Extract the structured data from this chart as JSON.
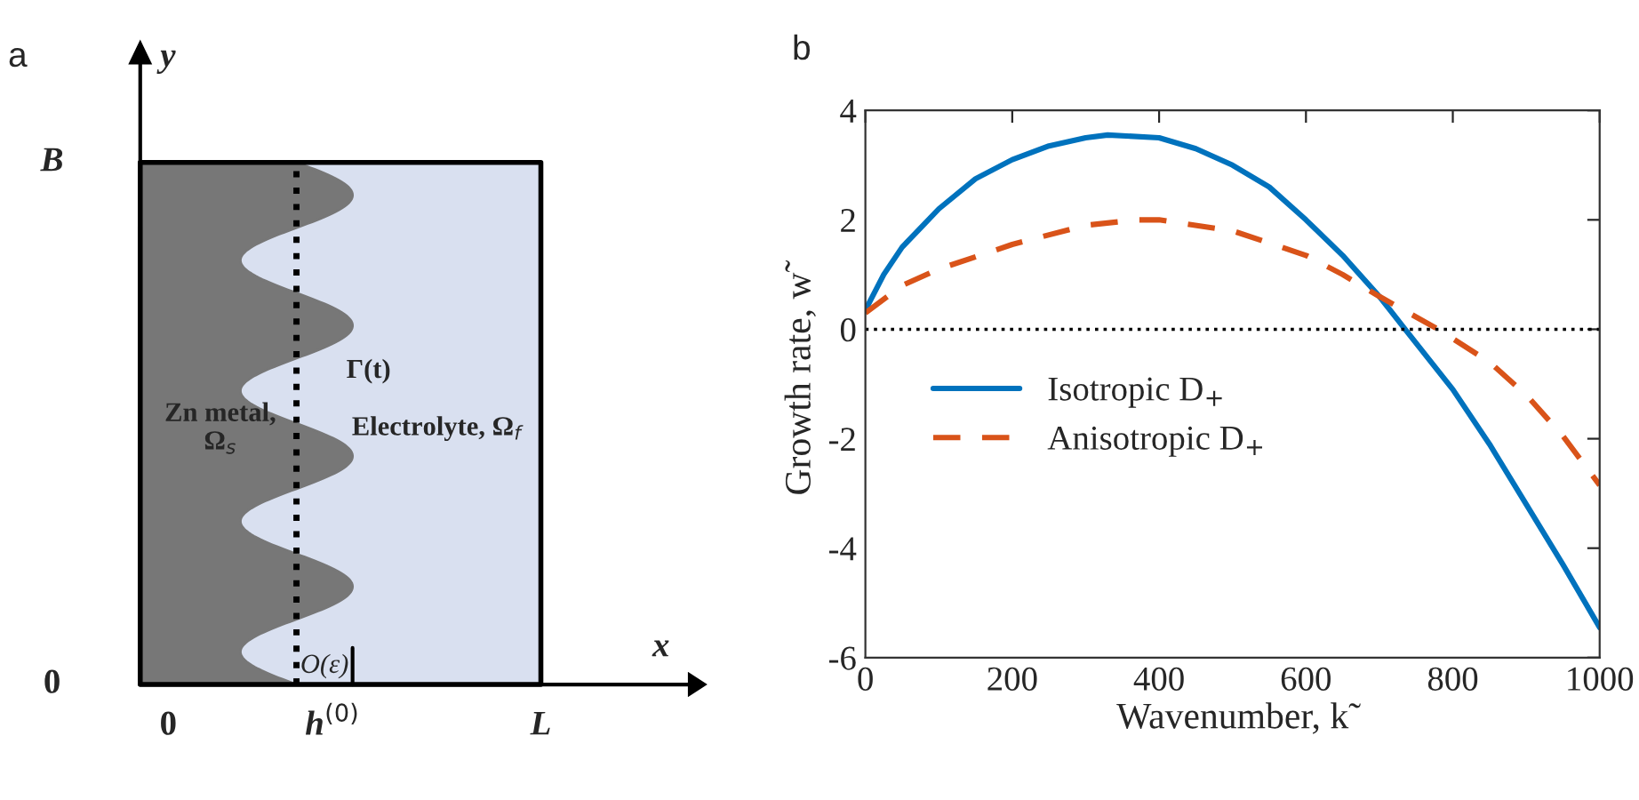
{
  "chart_data": [
    {
      "type": "other",
      "title": "a",
      "annotations": [
        "y",
        "B",
        "0",
        "x",
        "0",
        "h$^{(0)}$",
        "L",
        "Γ(t)",
        "Zn metal,\nΩ$_{s}$",
        "Electrolyte, Ω$_{f}$",
        "O(ε)"
      ]
    },
    {
      "type": "line",
      "title": "b",
      "xlabel": "Wavenumber, k̃",
      "ylabel": "Growth rate, w̃",
      "xlim": [
        0,
        1000
      ],
      "ylim": [
        -6,
        4
      ],
      "xticks": [
        0,
        200,
        400,
        600,
        800,
        1000
      ],
      "yticks": [
        -6,
        -4,
        -2,
        0,
        2,
        4
      ],
      "grid": false,
      "legend": "left",
      "ref_lines": [
        {
          "axis": "y",
          "value": 0,
          "color": "#000000",
          "line_style": "dotted"
        }
      ],
      "series": [
        {
          "name": "Isotropic D$_{+}$",
          "color": "#0072bd",
          "line_style": "solid",
          "x": [
            0,
            25,
            50,
            100,
            150,
            200,
            250,
            300,
            330,
            400,
            450,
            500,
            550,
            600,
            650,
            700,
            735,
            800,
            850,
            900,
            950,
            1000
          ],
          "values": [
            0.35,
            1.0,
            1.5,
            2.2,
            2.75,
            3.1,
            3.35,
            3.5,
            3.55,
            3.5,
            3.3,
            3.0,
            2.6,
            2.0,
            1.35,
            0.6,
            0,
            -1.1,
            -2.1,
            -3.2,
            -4.3,
            -5.45
          ]
        },
        {
          "name": "Anisotropic D$_{+}$",
          "color": "#d95319",
          "line_style": "dashed",
          "x": [
            0,
            50,
            100,
            200,
            300,
            370,
            400,
            500,
            600,
            650,
            700,
            780,
            850,
            900,
            950,
            1000
          ],
          "values": [
            0.3,
            0.8,
            1.1,
            1.55,
            1.9,
            2.0,
            2.0,
            1.8,
            1.35,
            1.0,
            0.6,
            0,
            -0.6,
            -1.2,
            -1.95,
            -2.85
          ]
        }
      ]
    }
  ]
}
